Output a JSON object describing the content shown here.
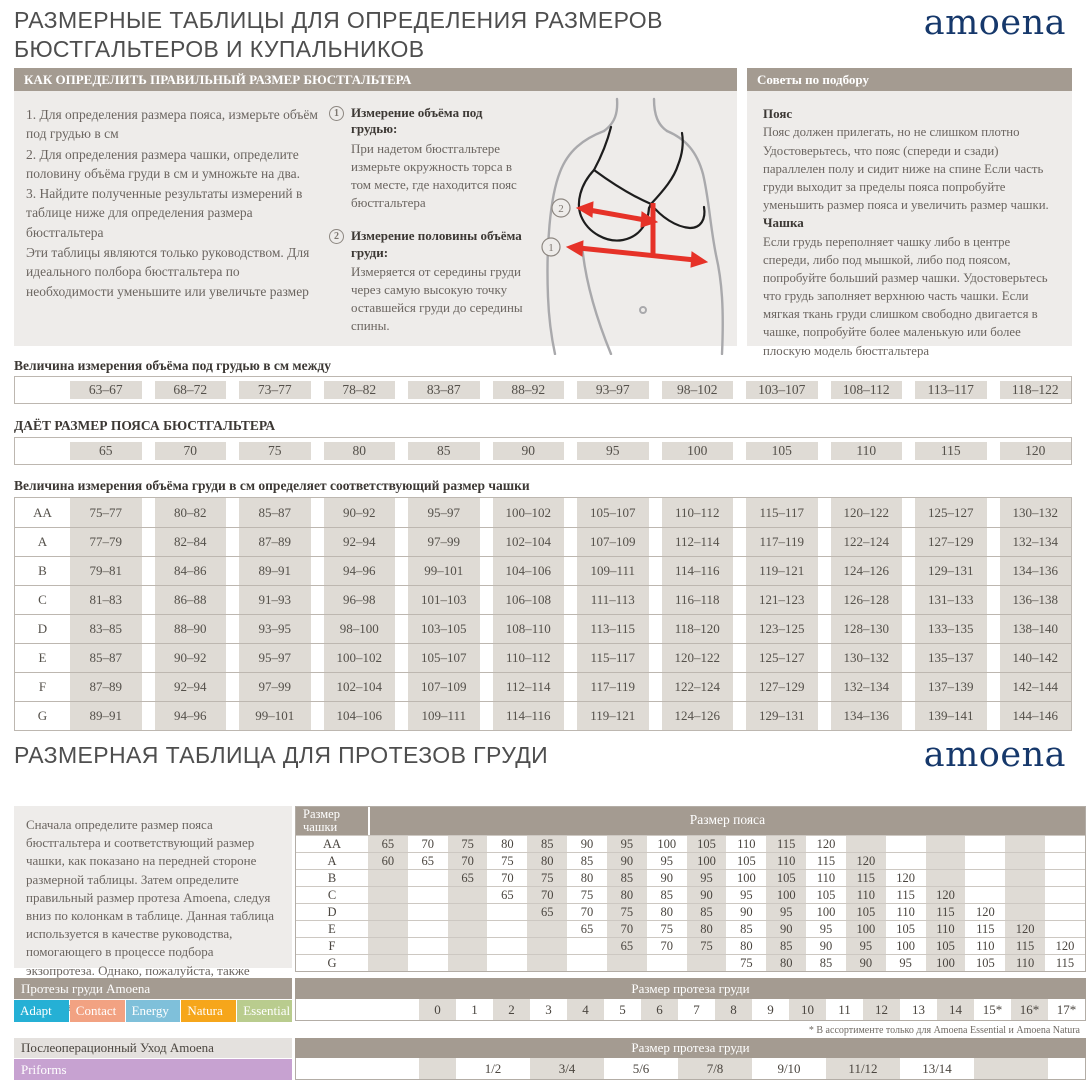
{
  "page": {
    "title_line1": "РАЗМЕРНЫЕ ТАБЛИЦЫ ДЛЯ ОПРЕДЕЛЕНИЯ РАЗМЕРОВ",
    "title_line2": "БЮСТГАЛЬТЕРОВ И КУПАЛЬНИКОВ",
    "brand": "amoena",
    "section2_title": "РАЗМЕРНАЯ ТАБЛИЦА ДЛЯ ПРОТЕЗОВ ГРУДИ",
    "colors": {
      "accent_taupe": "#a49b91",
      "cell_beige": "#dfdbd5",
      "brand_navy": "#16386b",
      "arrow_red": "#e63228"
    }
  },
  "how_to": {
    "header": "КАК ОПРЕДЕЛИТЬ ПРАВИЛЬНЫЙ РАЗМЕР БЮСТГАЛЬТЕРА",
    "steps": [
      "1. Для определения размера пояса, измерьте объём под грудью в см",
      "2.  Для определения размера чашки, определите половину объёма груди в см и умножьте на два.",
      "3.  Найдите полученные результаты измерений в таблице ниже для определения размера бюстгальтера"
    ],
    "note": "Эти таблицы являются только руководством. Для идеального полбора бюстгальтера по необходимости уменьшите или увеличьте размер",
    "measurements": [
      {
        "num": "1",
        "title": "Измерение объёма под грудью:",
        "text": "При надетом бюстгальтере измерьте окружность торса в том месте, где находится пояс бюстгальтера"
      },
      {
        "num": "2",
        "title": "Измерение половины объёма груди:",
        "text": "Измеряется от середины груди через самую высокую точку оставшейся груди до середины спины."
      }
    ]
  },
  "illustration": {
    "marker1": "1",
    "marker2": "2"
  },
  "tips": {
    "header": "Советы по подбору",
    "belt_title": "Пояс",
    "belt_text": "Пояс должен прилегать, но не слишком плотно Удостоверьтесь, что пояс (спереди и сзади) параллелен полу и сидит ниже на спине Если часть груди выходит за пределы пояса попробуйте уменьшить размер пояса и увеличить размер чашки.",
    "cup_title": "Чашка",
    "cup_text": "Если грудь переполняет чашку либо в центре спереди, либо под мышкой, либо под поясом, попробуйте больший размер чашки. Удостоверьтесь что грудь заполняет верхнюю часть чашки. Если мягкая ткань груди слишком свободно двигается в чашке, попробуйте более маленькую или более плоскую модель бюстгальтера"
  },
  "underbust_table": {
    "label": "Величина измерения объёма под грудью в см между",
    "ranges": [
      "63–67",
      "68–72",
      "73–77",
      "78–82",
      "83–87",
      "88–92",
      "93–97",
      "98–102",
      "103–107",
      "108–112",
      "113–117",
      "118–122"
    ]
  },
  "band_table": {
    "label": "ДАЁТ РАЗМЕР ПОЯСА БЮСТГАЛЬТЕРА",
    "sizes": [
      "65",
      "70",
      "75",
      "80",
      "85",
      "90",
      "95",
      "100",
      "105",
      "110",
      "115",
      "120"
    ]
  },
  "cup_table": {
    "label": "Величина измерения объёма груди в см определяет соответствующий размер чашки",
    "rows": [
      {
        "cup": "AA",
        "values": [
          "75–77",
          "80–82",
          "85–87",
          "90–92",
          "95–97",
          "100–102",
          "105–107",
          "110–112",
          "115–117",
          "120–122",
          "125–127",
          "130–132"
        ]
      },
      {
        "cup": "A",
        "values": [
          "77–79",
          "82–84",
          "87–89",
          "92–94",
          "97–99",
          "102–104",
          "107–109",
          "112–114",
          "117–119",
          "122–124",
          "127–129",
          "132–134"
        ]
      },
      {
        "cup": "B",
        "values": [
          "79–81",
          "84–86",
          "89–91",
          "94–96",
          "99–101",
          "104–106",
          "109–111",
          "114–116",
          "119–121",
          "124–126",
          "129–131",
          "134–136"
        ]
      },
      {
        "cup": "C",
        "values": [
          "81–83",
          "86–88",
          "91–93",
          "96–98",
          "101–103",
          "106–108",
          "111–113",
          "116–118",
          "121–123",
          "126–128",
          "131–133",
          "136–138"
        ]
      },
      {
        "cup": "D",
        "values": [
          "83–85",
          "88–90",
          "93–95",
          "98–100",
          "103–105",
          "108–110",
          "113–115",
          "118–120",
          "123–125",
          "128–130",
          "133–135",
          "138–140"
        ]
      },
      {
        "cup": "E",
        "values": [
          "85–87",
          "90–92",
          "95–97",
          "100–102",
          "105–107",
          "110–112",
          "115–117",
          "120–122",
          "125–127",
          "130–132",
          "135–137",
          "140–142"
        ]
      },
      {
        "cup": "F",
        "values": [
          "87–89",
          "92–94",
          "97–99",
          "102–104",
          "107–109",
          "112–114",
          "117–119",
          "122–124",
          "127–129",
          "132–134",
          "137–139",
          "142–144"
        ]
      },
      {
        "cup": "G",
        "values": [
          "89–91",
          "94–96",
          "99–101",
          "104–106",
          "109–111",
          "114–116",
          "119–121",
          "124–126",
          "129–131",
          "134–136",
          "139–141",
          "144–146"
        ]
      }
    ]
  },
  "section2_text": "Сначала определите размер пояса бюстгальтера и соответствующий размер чашки, как показано на передней стороне размерной таблицы. Затем определите правильный размер протеза Amoena, следуя вниз по колонкам в таблице. Данная таблица используется в качестве руководства, помогающего в процессе подбора экзопротеза. Однако, пожалуйста, также полагайтесь на свой опыт и индивидуальные ощущения.",
  "prosthesis_band_table": {
    "col_header": "Размер чашки",
    "header": "Размер пояса",
    "rows": [
      {
        "cup": "AA",
        "values": [
          "65",
          "70",
          "75",
          "80",
          "85",
          "90",
          "95",
          "100",
          "105",
          "110",
          "115",
          "120",
          "",
          "",
          "",
          "",
          "",
          ""
        ]
      },
      {
        "cup": "A",
        "values": [
          "60",
          "65",
          "70",
          "75",
          "80",
          "85",
          "90",
          "95",
          "100",
          "105",
          "110",
          "115",
          "120",
          "",
          "",
          "",
          "",
          ""
        ]
      },
      {
        "cup": "B",
        "values": [
          "",
          "",
          "65",
          "70",
          "75",
          "80",
          "85",
          "90",
          "95",
          "100",
          "105",
          "110",
          "115",
          "120",
          "",
          "",
          "",
          ""
        ]
      },
      {
        "cup": "C",
        "values": [
          "",
          "",
          "",
          "65",
          "70",
          "75",
          "80",
          "85",
          "90",
          "95",
          "100",
          "105",
          "110",
          "115",
          "120",
          "",
          "",
          ""
        ]
      },
      {
        "cup": "D",
        "values": [
          "",
          "",
          "",
          "",
          "65",
          "70",
          "75",
          "80",
          "85",
          "90",
          "95",
          "100",
          "105",
          "110",
          "115",
          "120",
          "",
          ""
        ]
      },
      {
        "cup": "E",
        "values": [
          "",
          "",
          "",
          "",
          "",
          "65",
          "70",
          "75",
          "80",
          "85",
          "90",
          "95",
          "100",
          "105",
          "110",
          "115",
          "120",
          ""
        ]
      },
      {
        "cup": "F",
        "values": [
          "",
          "",
          "",
          "",
          "",
          "",
          "65",
          "70",
          "75",
          "80",
          "85",
          "90",
          "95",
          "100",
          "105",
          "110",
          "115",
          "120"
        ]
      },
      {
        "cup": "G",
        "values": [
          "",
          "",
          "",
          "",
          "",
          "",
          "",
          "",
          "",
          "75",
          "80",
          "85",
          "90",
          "95",
          "100",
          "105",
          "110",
          "115"
        ]
      }
    ]
  },
  "products": {
    "header": "Протезы груди Amoena",
    "items": [
      {
        "label": "Adapt",
        "color": "#25b0d5"
      },
      {
        "label": "Contact",
        "color": "#f2a282"
      },
      {
        "label": "Energy",
        "color": "#7fc0da"
      },
      {
        "label": "Natura",
        "color": "#f6a61b"
      },
      {
        "label": "Essential",
        "color": "#b9cc8e"
      }
    ]
  },
  "prosthesis_size_table": {
    "header": "Размер протеза груди",
    "sizes": [
      "0",
      "1",
      "2",
      "3",
      "4",
      "5",
      "6",
      "7",
      "8",
      "9",
      "10",
      "11",
      "12",
      "13",
      "14",
      "15*",
      "16*",
      "17*"
    ],
    "footnote": "* В ассортименте только для  Amoena Essential и Amoena Natura"
  },
  "postop": {
    "header": "Послеоперационный Уход Amoena",
    "item": "Priforms",
    "item_color": "#c7a2d1",
    "table_header": "Размер протеза груди",
    "sizes": [
      "1/2",
      "3/4",
      "5/6",
      "7/8",
      "9/10",
      "11/12",
      "13/14"
    ]
  }
}
